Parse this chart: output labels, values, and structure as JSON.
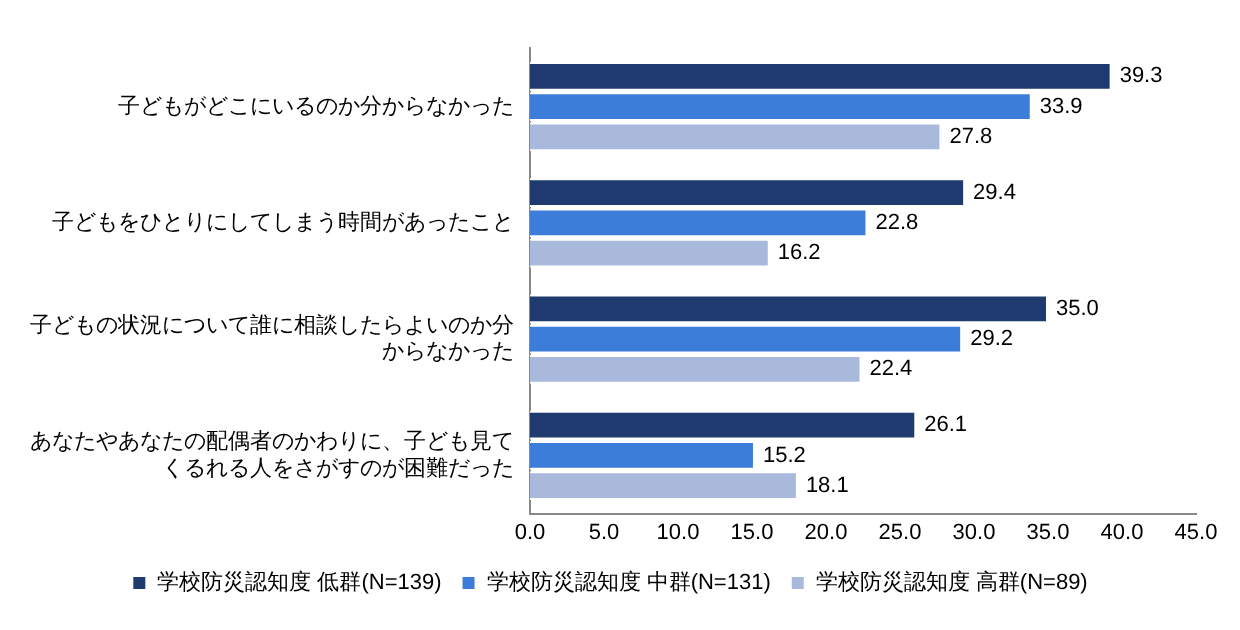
{
  "chart_data": {
    "type": "bar",
    "orientation": "horizontal",
    "categories": [
      "子どもがどこにいるのか分からなかった",
      "子どもをひとりにしてしまう時間があったこと",
      "子どもの状況について誰に相談したらよいのか分からなかった",
      "あなたやあなたの配偶者のかわりに、子ども見てくるれる人をさがすのが困難だった"
    ],
    "series": [
      {
        "name": "学校防災認知度 低群(N=139)",
        "color": "#1f3a6e",
        "values": [
          39.3,
          29.4,
          35.0,
          26.1
        ],
        "value_labels": [
          "39.3",
          "29.4",
          "35.0",
          "26.1"
        ]
      },
      {
        "name": "学校防災認知度 中群(N=131)",
        "color": "#3b7dd8",
        "values": [
          33.9,
          22.8,
          29.2,
          15.2
        ],
        "value_labels": [
          "33.9",
          "22.8",
          "29.2",
          "15.2"
        ]
      },
      {
        "name": "学校防災認知度 高群(N=89)",
        "color": "#a9b9dc",
        "values": [
          27.8,
          16.2,
          22.4,
          18.1
        ],
        "value_labels": [
          "27.8",
          "16.2",
          "22.4",
          "18.1"
        ]
      }
    ],
    "xlim": [
      0,
      45
    ],
    "xticks": [
      {
        "value": 0,
        "label": "0.0"
      },
      {
        "value": 5,
        "label": "5.0"
      },
      {
        "value": 10,
        "label": "10.0"
      },
      {
        "value": 15,
        "label": "15.0"
      },
      {
        "value": 20,
        "label": "20.0"
      },
      {
        "value": 25,
        "label": "25.0"
      },
      {
        "value": 30,
        "label": "30.0"
      },
      {
        "value": 35,
        "label": "35.0"
      },
      {
        "value": 40,
        "label": "40.0"
      },
      {
        "value": 45,
        "label": "45.0"
      }
    ],
    "grid": false,
    "legend": "bottom"
  }
}
